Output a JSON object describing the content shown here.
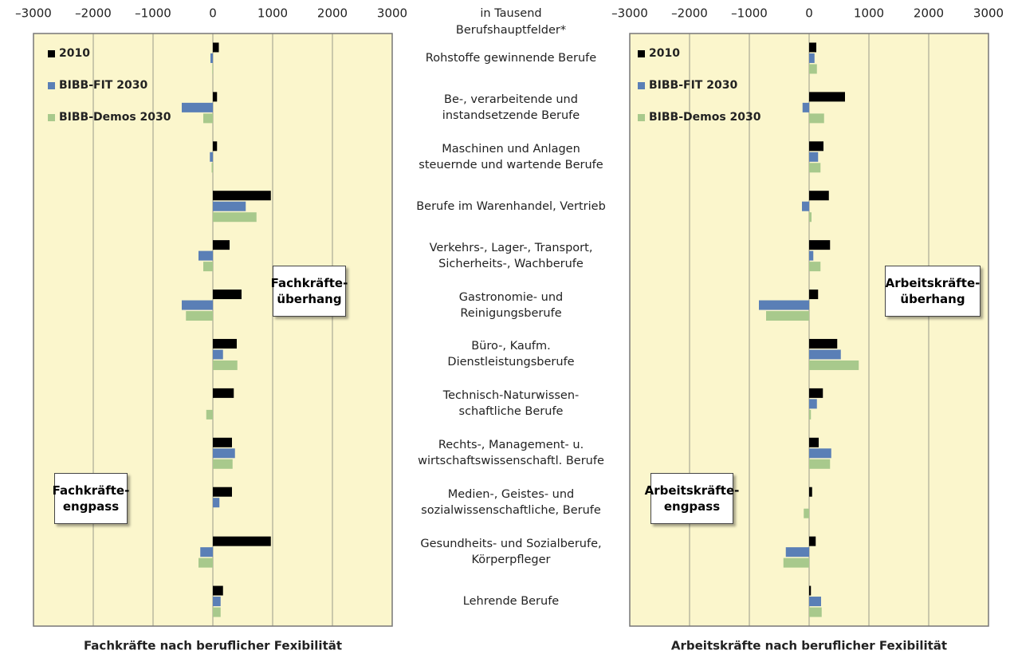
{
  "unit_label": "in Tausend",
  "categories_header": "Berufshauptfelder*",
  "categories": [
    "Rohstoffe gewinnende Berufe",
    "Be-, verarbeitende und\ninstandsetzende Berufe",
    "Maschinen und Anlagen\nsteuernde und wartende Berufe",
    "Berufe im Warenhandel, Vertrieb",
    "Verkehrs-, Lager-, Transport,\nSicherheits-, Wachberufe",
    "Gastronomie- und\nReinigungsberufe",
    "Büro-, Kaufm.\nDienstleistungsberufe",
    "Technisch-Naturwissen-\nschaftliche Berufe",
    "Rechts-, Management- u.\nwirtschaftswissenschaftl. Berufe",
    "Medien-, Geistes- und\nsozialwissenschaftliche, Berufe",
    "Gesundheits- und Sozialberufe,\nKörperpfleger",
    "Lehrende Berufe"
  ],
  "chart_data": [
    {
      "type": "barh",
      "title": "Fachkräfte nach beruflicher Fexibilität",
      "legend": "upper left",
      "grid": true,
      "xlim": [
        -3000,
        3000
      ],
      "xticks": [
        {
          "value": -3000,
          "label": "–3000"
        },
        {
          "value": -2000,
          "label": "–2000"
        },
        {
          "value": -1000,
          "label": "–1000"
        },
        0,
        1000,
        2000,
        3000
      ],
      "annotations": [
        "Fachkräfte-\nüberhang",
        "Fachkräfte-\nengpass"
      ],
      "series": [
        {
          "name": "2010",
          "color": "#000000",
          "values": [
            100,
            70,
            70,
            970,
            280,
            480,
            400,
            350,
            320,
            320,
            970,
            170
          ]
        },
        {
          "name": "BIBB-FIT 2030",
          "color": "#5a7fb6",
          "values": [
            -40,
            -520,
            -50,
            550,
            -240,
            -520,
            170,
            0,
            370,
            110,
            -210,
            130
          ]
        },
        {
          "name": "BIBB-Demos 2030",
          "color": "#a8c98c",
          "values": [
            -10,
            -160,
            -20,
            730,
            -160,
            -450,
            410,
            -110,
            330,
            0,
            -240,
            130
          ]
        }
      ]
    },
    {
      "type": "barh",
      "title": "Arbeitskräfte nach beruflicher Fexibilität",
      "legend": "upper left",
      "grid": true,
      "xlim": [
        -3000,
        3000
      ],
      "xticks": [
        {
          "value": -3000,
          "label": "–3000"
        },
        {
          "value": -2000,
          "label": "–2000"
        },
        {
          "value": -1000,
          "label": "–1000"
        },
        0,
        1000,
        2000,
        3000
      ],
      "annotations": [
        "Arbeitskräfte-\nüberhang",
        "Arbeitskräfte-\nengpass"
      ],
      "series": [
        {
          "name": "2010",
          "color": "#000000",
          "values": [
            120,
            600,
            240,
            330,
            350,
            150,
            470,
            230,
            160,
            50,
            110,
            30
          ]
        },
        {
          "name": "BIBB-FIT 2030",
          "color": "#5a7fb6",
          "values": [
            90,
            -110,
            150,
            -120,
            70,
            -840,
            530,
            130,
            370,
            0,
            -390,
            200
          ]
        },
        {
          "name": "BIBB-Demos 2030",
          "color": "#a8c98c",
          "values": [
            130,
            250,
            190,
            40,
            190,
            -720,
            830,
            30,
            350,
            -90,
            -430,
            210
          ]
        }
      ]
    }
  ]
}
